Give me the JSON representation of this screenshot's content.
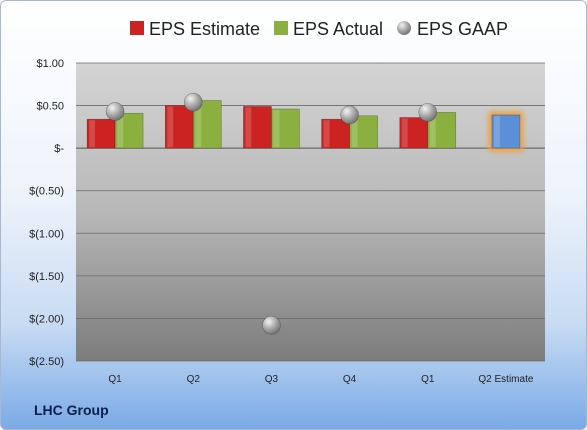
{
  "company": "LHC Group",
  "chart_data": {
    "type": "bar",
    "categories": [
      "Q1",
      "Q2",
      "Q3",
      "Q4",
      "Q1",
      "Q2 Estimate"
    ],
    "series": [
      {
        "name": "EPS Estimate",
        "color": "#cc2222",
        "values": [
          0.34,
          0.5,
          0.49,
          0.34,
          0.36,
          null
        ]
      },
      {
        "name": "EPS Actual",
        "color": "#8cb040",
        "values": [
          0.41,
          0.56,
          0.46,
          0.38,
          0.42,
          null
        ]
      },
      {
        "name": "EPS GAAP",
        "color": "#a6a6a6",
        "marker": "sphere",
        "values": [
          0.43,
          0.54,
          -2.08,
          0.39,
          0.42,
          null
        ]
      },
      {
        "name": "Q2 Estimate",
        "color": "#5b8fd6",
        "highlight": "#f0a040",
        "values": [
          null,
          null,
          null,
          null,
          null,
          0.39
        ]
      }
    ],
    "yticks": [
      1.0,
      0.5,
      0,
      -0.5,
      -1.0,
      -1.5,
      -2.0,
      -2.5
    ],
    "ytick_labels": [
      "$1.00",
      "$0.50",
      "$-",
      "$(0.50)",
      "$(1.00)",
      "$(1.50)",
      "$(2.00)",
      "$(2.50)"
    ],
    "ylim": [
      -2.5,
      1.0
    ],
    "grid": true,
    "legend_position": "top"
  }
}
